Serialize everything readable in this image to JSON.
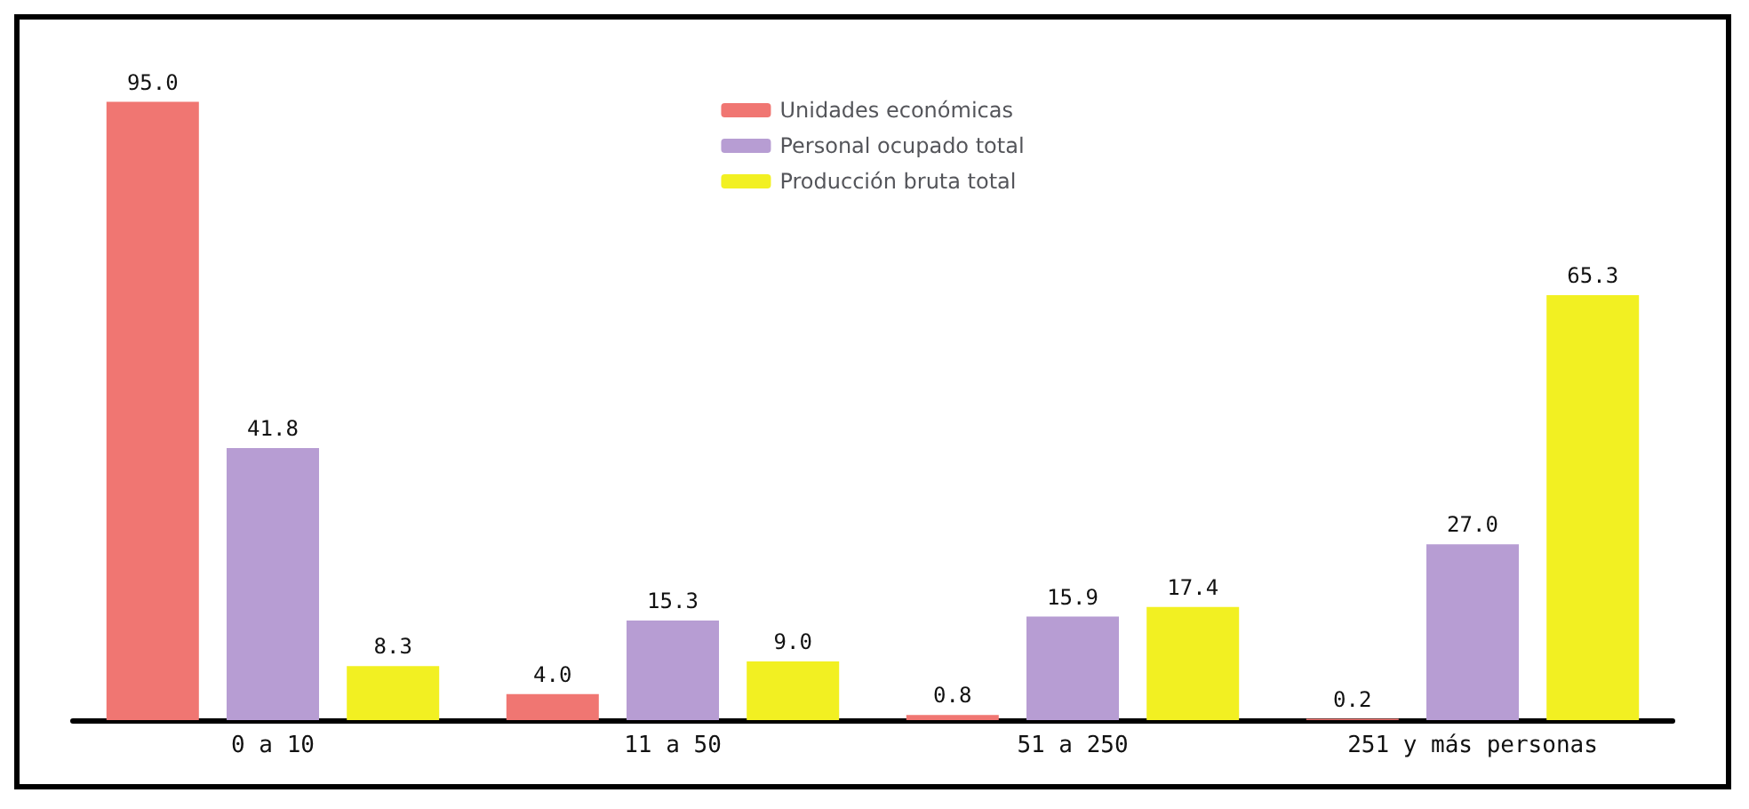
{
  "chart_data": {
    "type": "bar",
    "categories": [
      "0 a 10",
      "11 a 50",
      "51 a 250",
      "251 y más personas"
    ],
    "series": [
      {
        "name": "Unidades económicas",
        "color": "#f07672",
        "values": [
          95.0,
          4.0,
          0.8,
          0.2
        ],
        "value_labels": [
          "95.0",
          "4.0",
          "0.8",
          "0.2"
        ]
      },
      {
        "name": "Personal ocupado total",
        "color": "#b79dd3",
        "values": [
          41.8,
          15.3,
          15.9,
          27.0
        ],
        "value_labels": [
          "41.8",
          "15.3",
          "15.9",
          "27.0"
        ]
      },
      {
        "name": "Producción bruta total",
        "color": "#f2f022",
        "values": [
          8.3,
          9.0,
          17.4,
          65.3
        ],
        "value_labels": [
          "8.3",
          "9.0",
          "17.4",
          "65.3"
        ]
      }
    ],
    "legend": "top",
    "grid": false
  }
}
